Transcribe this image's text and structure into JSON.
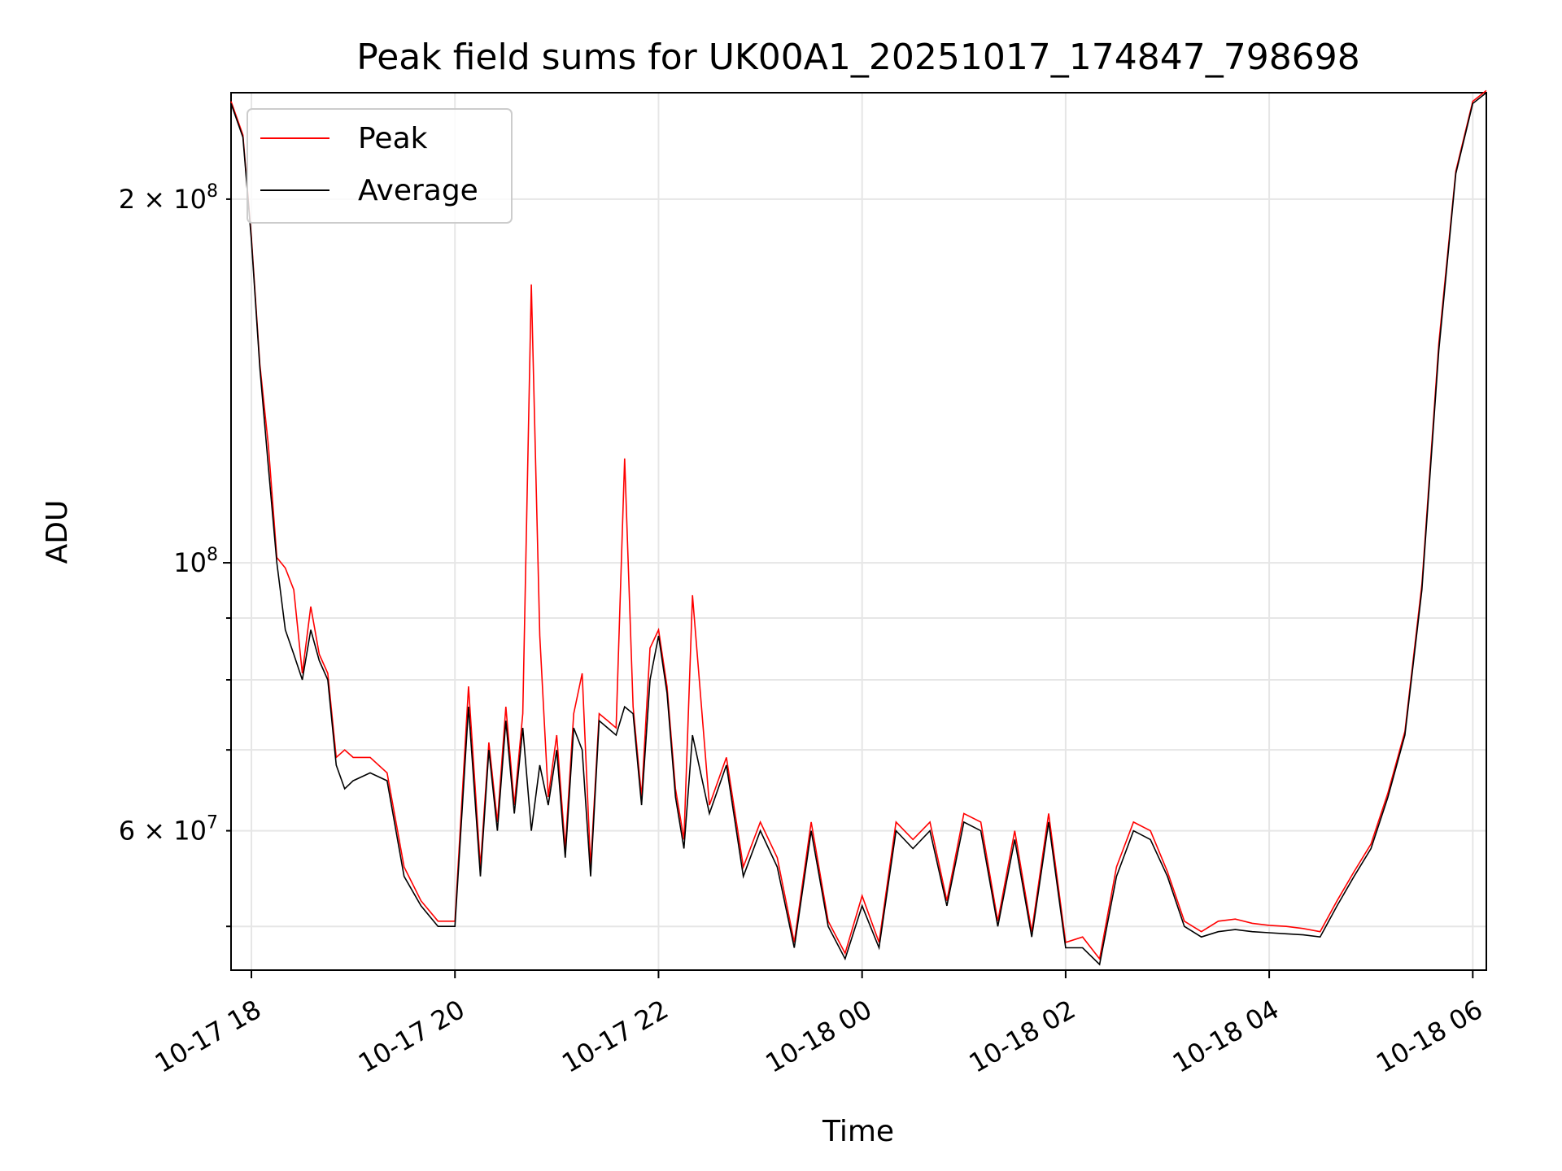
{
  "chart_data": {
    "type": "line",
    "title": "Peak field sums for UK00A1_20251017_174847_798698",
    "xlabel": "Time",
    "ylabel": "ADU",
    "yscale": "log",
    "ylim": [
      46000000,
      245000000
    ],
    "xlim": [
      "10-17 17:48",
      "10-18 06:08"
    ],
    "grid": true,
    "legend_position": "top-left",
    "x_ticks": [
      "10-17 18",
      "10-17 20",
      "10-17 22",
      "10-18 00",
      "10-18 02",
      "10-18 04",
      "10-18 06"
    ],
    "y_ticks_major": [
      {
        "value": 100000000,
        "mantissa": "",
        "base": "10",
        "exp": "8"
      }
    ],
    "y_ticks_labeled_minor": [
      {
        "value": 60000000,
        "mantissa": "6",
        "base": "10",
        "exp": "7"
      },
      {
        "value": 200000000,
        "mantissa": "2",
        "base": "10",
        "exp": "8"
      }
    ],
    "y_ticks_minor_unlabeled": [
      50000000,
      70000000,
      80000000,
      90000000
    ],
    "series": [
      {
        "name": "Peak",
        "color": "#ff0000"
      },
      {
        "name": "Average",
        "color": "#000000"
      }
    ],
    "x": [
      "10-17 17:48",
      "10-17 17:55",
      "10-17 18:00",
      "10-17 18:05",
      "10-17 18:10",
      "10-17 18:15",
      "10-17 18:20",
      "10-17 18:25",
      "10-17 18:30",
      "10-17 18:35",
      "10-17 18:40",
      "10-17 18:45",
      "10-17 18:50",
      "10-17 18:55",
      "10-17 19:00",
      "10-17 19:10",
      "10-17 19:20",
      "10-17 19:30",
      "10-17 19:40",
      "10-17 19:50",
      "10-17 20:00",
      "10-17 20:08",
      "10-17 20:15",
      "10-17 20:20",
      "10-17 20:25",
      "10-17 20:30",
      "10-17 20:35",
      "10-17 20:40",
      "10-17 20:45",
      "10-17 20:50",
      "10-17 20:55",
      "10-17 21:00",
      "10-17 21:05",
      "10-17 21:10",
      "10-17 21:15",
      "10-17 21:20",
      "10-17 21:25",
      "10-17 21:30",
      "10-17 21:35",
      "10-17 21:40",
      "10-17 21:45",
      "10-17 21:50",
      "10-17 21:55",
      "10-17 22:00",
      "10-17 22:05",
      "10-17 22:10",
      "10-17 22:15",
      "10-17 22:20",
      "10-17 22:30",
      "10-17 22:40",
      "10-17 22:50",
      "10-17 23:00",
      "10-17 23:10",
      "10-17 23:20",
      "10-17 23:30",
      "10-17 23:40",
      "10-17 23:50",
      "10-18 00:00",
      "10-18 00:10",
      "10-18 00:20",
      "10-18 00:30",
      "10-18 00:40",
      "10-18 00:50",
      "10-18 01:00",
      "10-18 01:10",
      "10-18 01:20",
      "10-18 01:30",
      "10-18 01:40",
      "10-18 01:50",
      "10-18 02:00",
      "10-18 02:10",
      "10-18 02:20",
      "10-18 02:30",
      "10-18 02:40",
      "10-18 02:50",
      "10-18 03:00",
      "10-18 03:10",
      "10-18 03:20",
      "10-18 03:30",
      "10-18 03:40",
      "10-18 03:50",
      "10-18 04:00",
      "10-18 04:10",
      "10-18 04:20",
      "10-18 04:30",
      "10-18 04:40",
      "10-18 04:50",
      "10-18 05:00",
      "10-18 05:10",
      "10-18 05:20",
      "10-18 05:30",
      "10-18 05:40",
      "10-18 05:50",
      "10-18 06:00",
      "10-18 06:08"
    ],
    "average": [
      240000000,
      225000000,
      185000000,
      145000000,
      120000000,
      100000000,
      88000000,
      84000000,
      80000000,
      88000000,
      83000000,
      80000000,
      68000000,
      65000000,
      66000000,
      67000000,
      66000000,
      55000000,
      52000000,
      50000000,
      50000000,
      76000000,
      55000000,
      70000000,
      60000000,
      74000000,
      62000000,
      73000000,
      60000000,
      68000000,
      63000000,
      70000000,
      57000000,
      73000000,
      70000000,
      55000000,
      74000000,
      73000000,
      72000000,
      76000000,
      75000000,
      63000000,
      80000000,
      87000000,
      78000000,
      64000000,
      58000000,
      72000000,
      62000000,
      68000000,
      55000000,
      60000000,
      56000000,
      48000000,
      60000000,
      50000000,
      47000000,
      52000000,
      48000000,
      60000000,
      58000000,
      60000000,
      52000000,
      61000000,
      60000000,
      50000000,
      59000000,
      49000000,
      61000000,
      48000000,
      48000000,
      46500000,
      55000000,
      60000000,
      59000000,
      55000000,
      50000000,
      49000000,
      49500000,
      49700000,
      49500000,
      49400000,
      49300000,
      49200000,
      49000000,
      52000000,
      55000000,
      58000000,
      64000000,
      72000000,
      95000000,
      150000000,
      210000000,
      240000000,
      245000000
    ],
    "peak": [
      241000000,
      226000000,
      186000000,
      146000000,
      125000000,
      101000000,
      99000000,
      95000000,
      81000000,
      92000000,
      84000000,
      81000000,
      69000000,
      70000000,
      69000000,
      69000000,
      67000000,
      56000000,
      52500000,
      50500000,
      50500000,
      79000000,
      56000000,
      71000000,
      61000000,
      76000000,
      63000000,
      75000000,
      170000000,
      87000000,
      64000000,
      72000000,
      58000000,
      75000000,
      81000000,
      56000000,
      75000000,
      74000000,
      73000000,
      122000000,
      76000000,
      64000000,
      85000000,
      88000000,
      79000000,
      65000000,
      59000000,
      94000000,
      63000000,
      69000000,
      56000000,
      61000000,
      57000000,
      48500000,
      61000000,
      50500000,
      47500000,
      53000000,
      48500000,
      61000000,
      59000000,
      61000000,
      52500000,
      62000000,
      61000000,
      50500000,
      60000000,
      49500000,
      62000000,
      48500000,
      49000000,
      47000000,
      56000000,
      61000000,
      60000000,
      55500000,
      50500000,
      49500000,
      50500000,
      50700000,
      50300000,
      50100000,
      50000000,
      49800000,
      49500000,
      52500000,
      55500000,
      58500000,
      64500000,
      72500000,
      96000000,
      152000000,
      211000000,
      241000000,
      246000000
    ]
  }
}
